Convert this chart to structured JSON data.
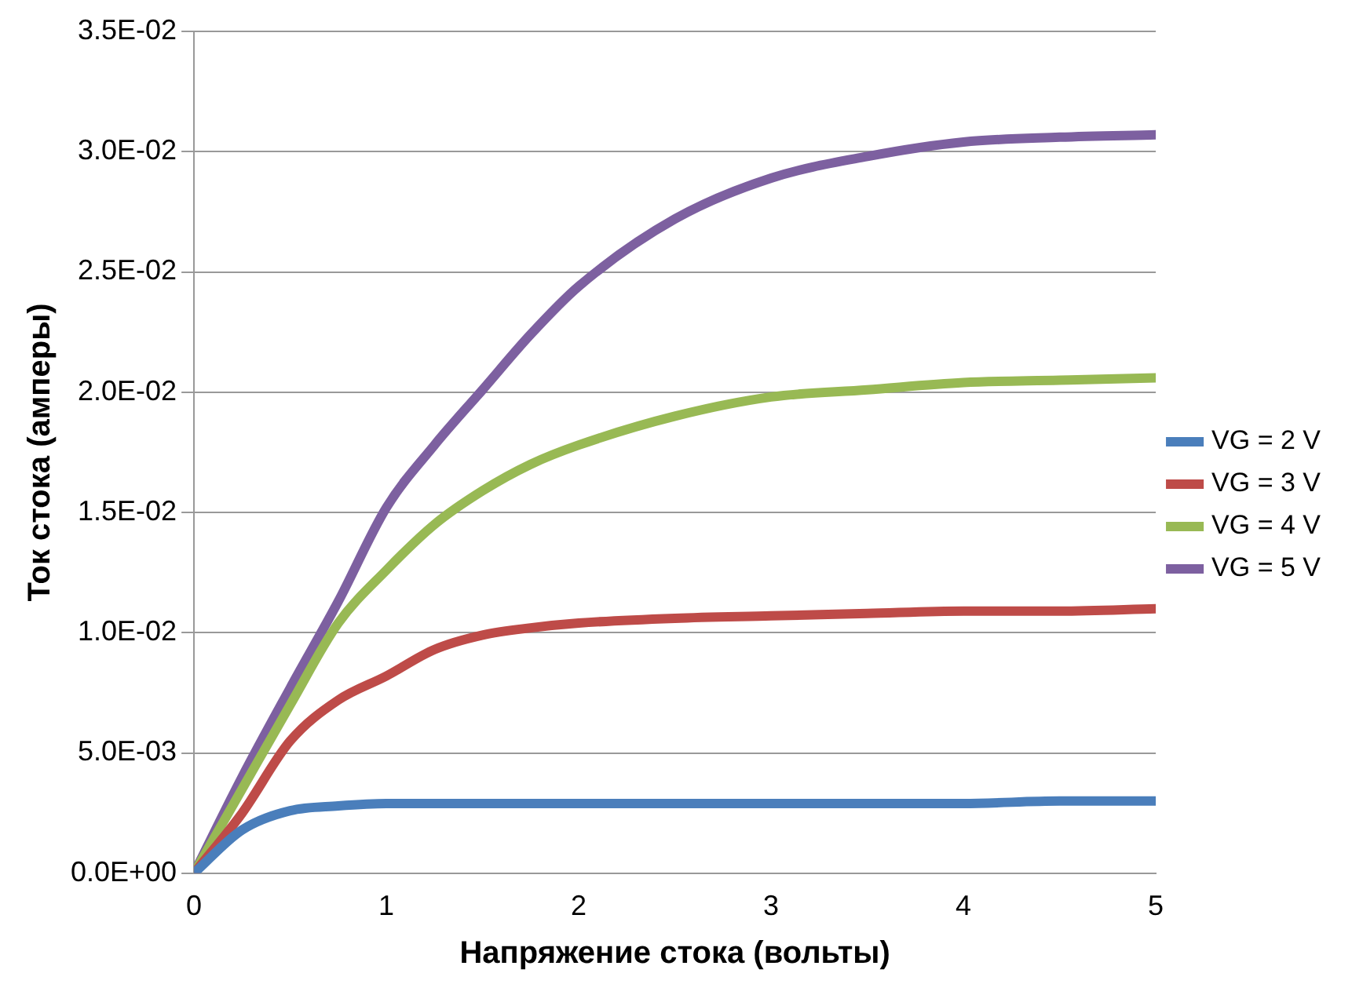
{
  "chart_data": {
    "type": "line",
    "xlabel": "Напряжение стока (вольты)",
    "ylabel": "Ток стока (амперы)",
    "x": [
      0,
      0.25,
      0.5,
      0.75,
      1,
      1.25,
      1.5,
      1.75,
      2,
      2.5,
      3,
      3.5,
      4,
      4.5,
      5
    ],
    "series": [
      {
        "name": "VG = 2 V",
        "color": "#4a7ebb",
        "values": [
          0,
          0.0018,
          0.0026,
          0.0028,
          0.0029,
          0.0029,
          0.0029,
          0.0029,
          0.0029,
          0.0029,
          0.0029,
          0.0029,
          0.0029,
          0.003,
          0.003
        ]
      },
      {
        "name": "VG = 3 V",
        "color": "#be4b48",
        "values": [
          0,
          0.0025,
          0.0055,
          0.0072,
          0.0082,
          0.0093,
          0.0099,
          0.0102,
          0.0104,
          0.0106,
          0.0107,
          0.0108,
          0.0109,
          0.0109,
          0.011
        ]
      },
      {
        "name": "VG = 4 V",
        "color": "#98b954",
        "values": [
          0,
          0.0035,
          0.007,
          0.0104,
          0.0126,
          0.0145,
          0.0159,
          0.017,
          0.0178,
          0.019,
          0.0198,
          0.0201,
          0.0204,
          0.0205,
          0.0206
        ]
      },
      {
        "name": "VG = 5 V",
        "color": "#7d60a0",
        "values": [
          0,
          0.004,
          0.0077,
          0.0113,
          0.0152,
          0.0178,
          0.0201,
          0.0224,
          0.0244,
          0.0272,
          0.0289,
          0.0298,
          0.0304,
          0.0306,
          0.0307
        ]
      }
    ],
    "xlim": [
      0,
      5
    ],
    "xticks": [
      0,
      1,
      2,
      3,
      4,
      5
    ],
    "ylim": [
      0,
      0.035
    ],
    "yticks": [
      {
        "value": 0,
        "label": "0.0E+00"
      },
      {
        "value": 0.005,
        "label": "5.0E-03"
      },
      {
        "value": 0.01,
        "label": "1.0E-02"
      },
      {
        "value": 0.015,
        "label": "1.5E-02"
      },
      {
        "value": 0.02,
        "label": "2.0E-02"
      },
      {
        "value": 0.025,
        "label": "2.5E-02"
      },
      {
        "value": 0.03,
        "label": "3.0E-02"
      },
      {
        "value": 0.035,
        "label": "3.5E-02"
      }
    ],
    "grid": "y",
    "legend": "right",
    "marker": "none",
    "line_style": "solid"
  }
}
